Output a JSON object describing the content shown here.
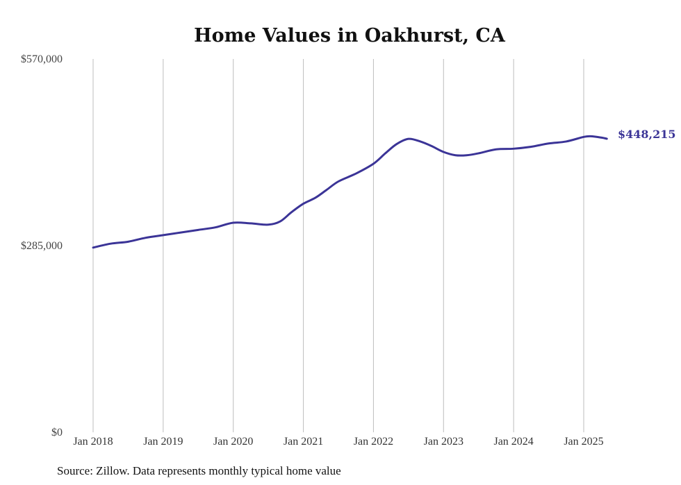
{
  "chart_data": {
    "type": "line",
    "title": "Home Values in Oakhurst, CA",
    "xlabel": "",
    "ylabel": "",
    "ylim": [
      0,
      570000
    ],
    "y_ticks": [
      "$0",
      "$285,000",
      "$570,000"
    ],
    "y_tick_values": [
      0,
      285000,
      570000
    ],
    "x_ticks": [
      "Jan 2018",
      "Jan 2019",
      "Jan 2020",
      "Jan 2021",
      "Jan 2022",
      "Jan 2023",
      "Jan 2024",
      "Jan 2025"
    ],
    "x_tick_values": [
      2018,
      2019,
      2020,
      2021,
      2022,
      2023,
      2024,
      2025
    ],
    "grid": "vertical",
    "series": [
      {
        "color": "#3b3497",
        "x": [
          2018.0,
          2018.25,
          2018.5,
          2018.75,
          2019.0,
          2019.25,
          2019.5,
          2019.75,
          2020.0,
          2020.25,
          2020.5,
          2020.67,
          2020.83,
          2021.0,
          2021.17,
          2021.33,
          2021.5,
          2021.75,
          2022.0,
          2022.17,
          2022.33,
          2022.5,
          2022.67,
          2022.83,
          2023.0,
          2023.17,
          2023.33,
          2023.5,
          2023.75,
          2024.0,
          2024.25,
          2024.5,
          2024.75,
          2025.0,
          2025.1,
          2025.25,
          2025.33
        ],
        "values": [
          282000,
          288000,
          291000,
          297000,
          301000,
          305000,
          309000,
          313000,
          320000,
          319000,
          317000,
          322000,
          336000,
          349000,
          358000,
          370000,
          383000,
          395000,
          410000,
          426000,
          440000,
          448000,
          444000,
          437000,
          428000,
          423000,
          423000,
          426000,
          432000,
          433000,
          436000,
          441000,
          444000,
          451000,
          452000,
          450000,
          448215
        ]
      }
    ],
    "end_label": "$448,215",
    "source": "Source: Zillow. Data represents monthly typical home value"
  }
}
